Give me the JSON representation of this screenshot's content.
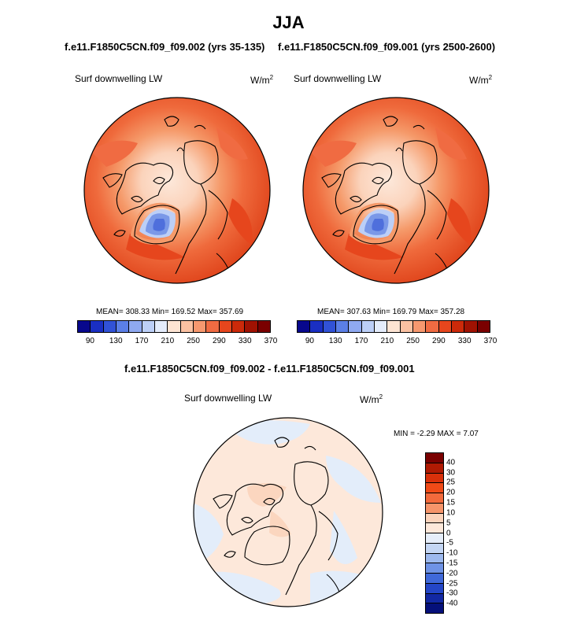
{
  "title": "JJA",
  "panels": [
    {
      "run": "f.e11.F1850C5CN.f09_f09.002 (yrs 35-135)",
      "variable": "Surf downwelling LW",
      "units_base": "W/m",
      "units_exp": "2",
      "stats": "MEAN= 308.33  Min= 169.52  Max= 357.69"
    },
    {
      "run": "f.e11.F1850C5CN.f09_f09.001 (yrs 2500-2600)",
      "variable": "Surf downwelling LW",
      "units_base": "W/m",
      "units_exp": "2",
      "stats": "MEAN= 307.63  Min= 169.79  Max= 357.28"
    }
  ],
  "diff_panel": {
    "title": "f.e11.F1850C5CN.f09_f09.002 - f.e11.F1850C5CN.f09_f09.001",
    "variable": "Surf downwelling LW",
    "units_base": "W/m",
    "units_exp": "2",
    "stats": "MIN =  -2.29 MAX =   7.07"
  },
  "colorbar_abs": {
    "colors": [
      "#08088c",
      "#1a2fc2",
      "#3152d6",
      "#5b7fe6",
      "#8fa9f0",
      "#bccff7",
      "#e4ecfb",
      "#fde4d3",
      "#fac1a2",
      "#f6986f",
      "#f06b42",
      "#e6461d",
      "#cc2a0a",
      "#a01202",
      "#7a0000"
    ],
    "labels": [
      "90",
      "130",
      "170",
      "210",
      "250",
      "290",
      "330",
      "370"
    ]
  },
  "colorbar_diff": {
    "colors": [
      "#7a0000",
      "#b01a03",
      "#d9300a",
      "#f04a17",
      "#f36a3c",
      "#f6946a",
      "#fbd3bb",
      "#fde8da",
      "#e6eefa",
      "#c4d6f4",
      "#9db9ee",
      "#6f93e6",
      "#4069da",
      "#2446c7",
      "#1228a3",
      "#05107a"
    ],
    "labels": [
      "40",
      "30",
      "25",
      "20",
      "15",
      "10",
      "5",
      "0",
      "-5",
      "-10",
      "-15",
      "-20",
      "-25",
      "-30",
      "-40"
    ]
  },
  "map_colors": {
    "ocean_high": "#dc3c14",
    "ocean_mid": "#ef6a3c",
    "land_mid": "#f59a6a",
    "arctic_pale": "#fbd3bb",
    "arctic_white": "#fde8da",
    "greenland_blue": "#7a98e8",
    "greenland_dark": "#4f6fdc",
    "diff_pos": "#fde8da",
    "diff_neg": "#e3edfa",
    "diff_pos2": "#fbd6bf"
  }
}
